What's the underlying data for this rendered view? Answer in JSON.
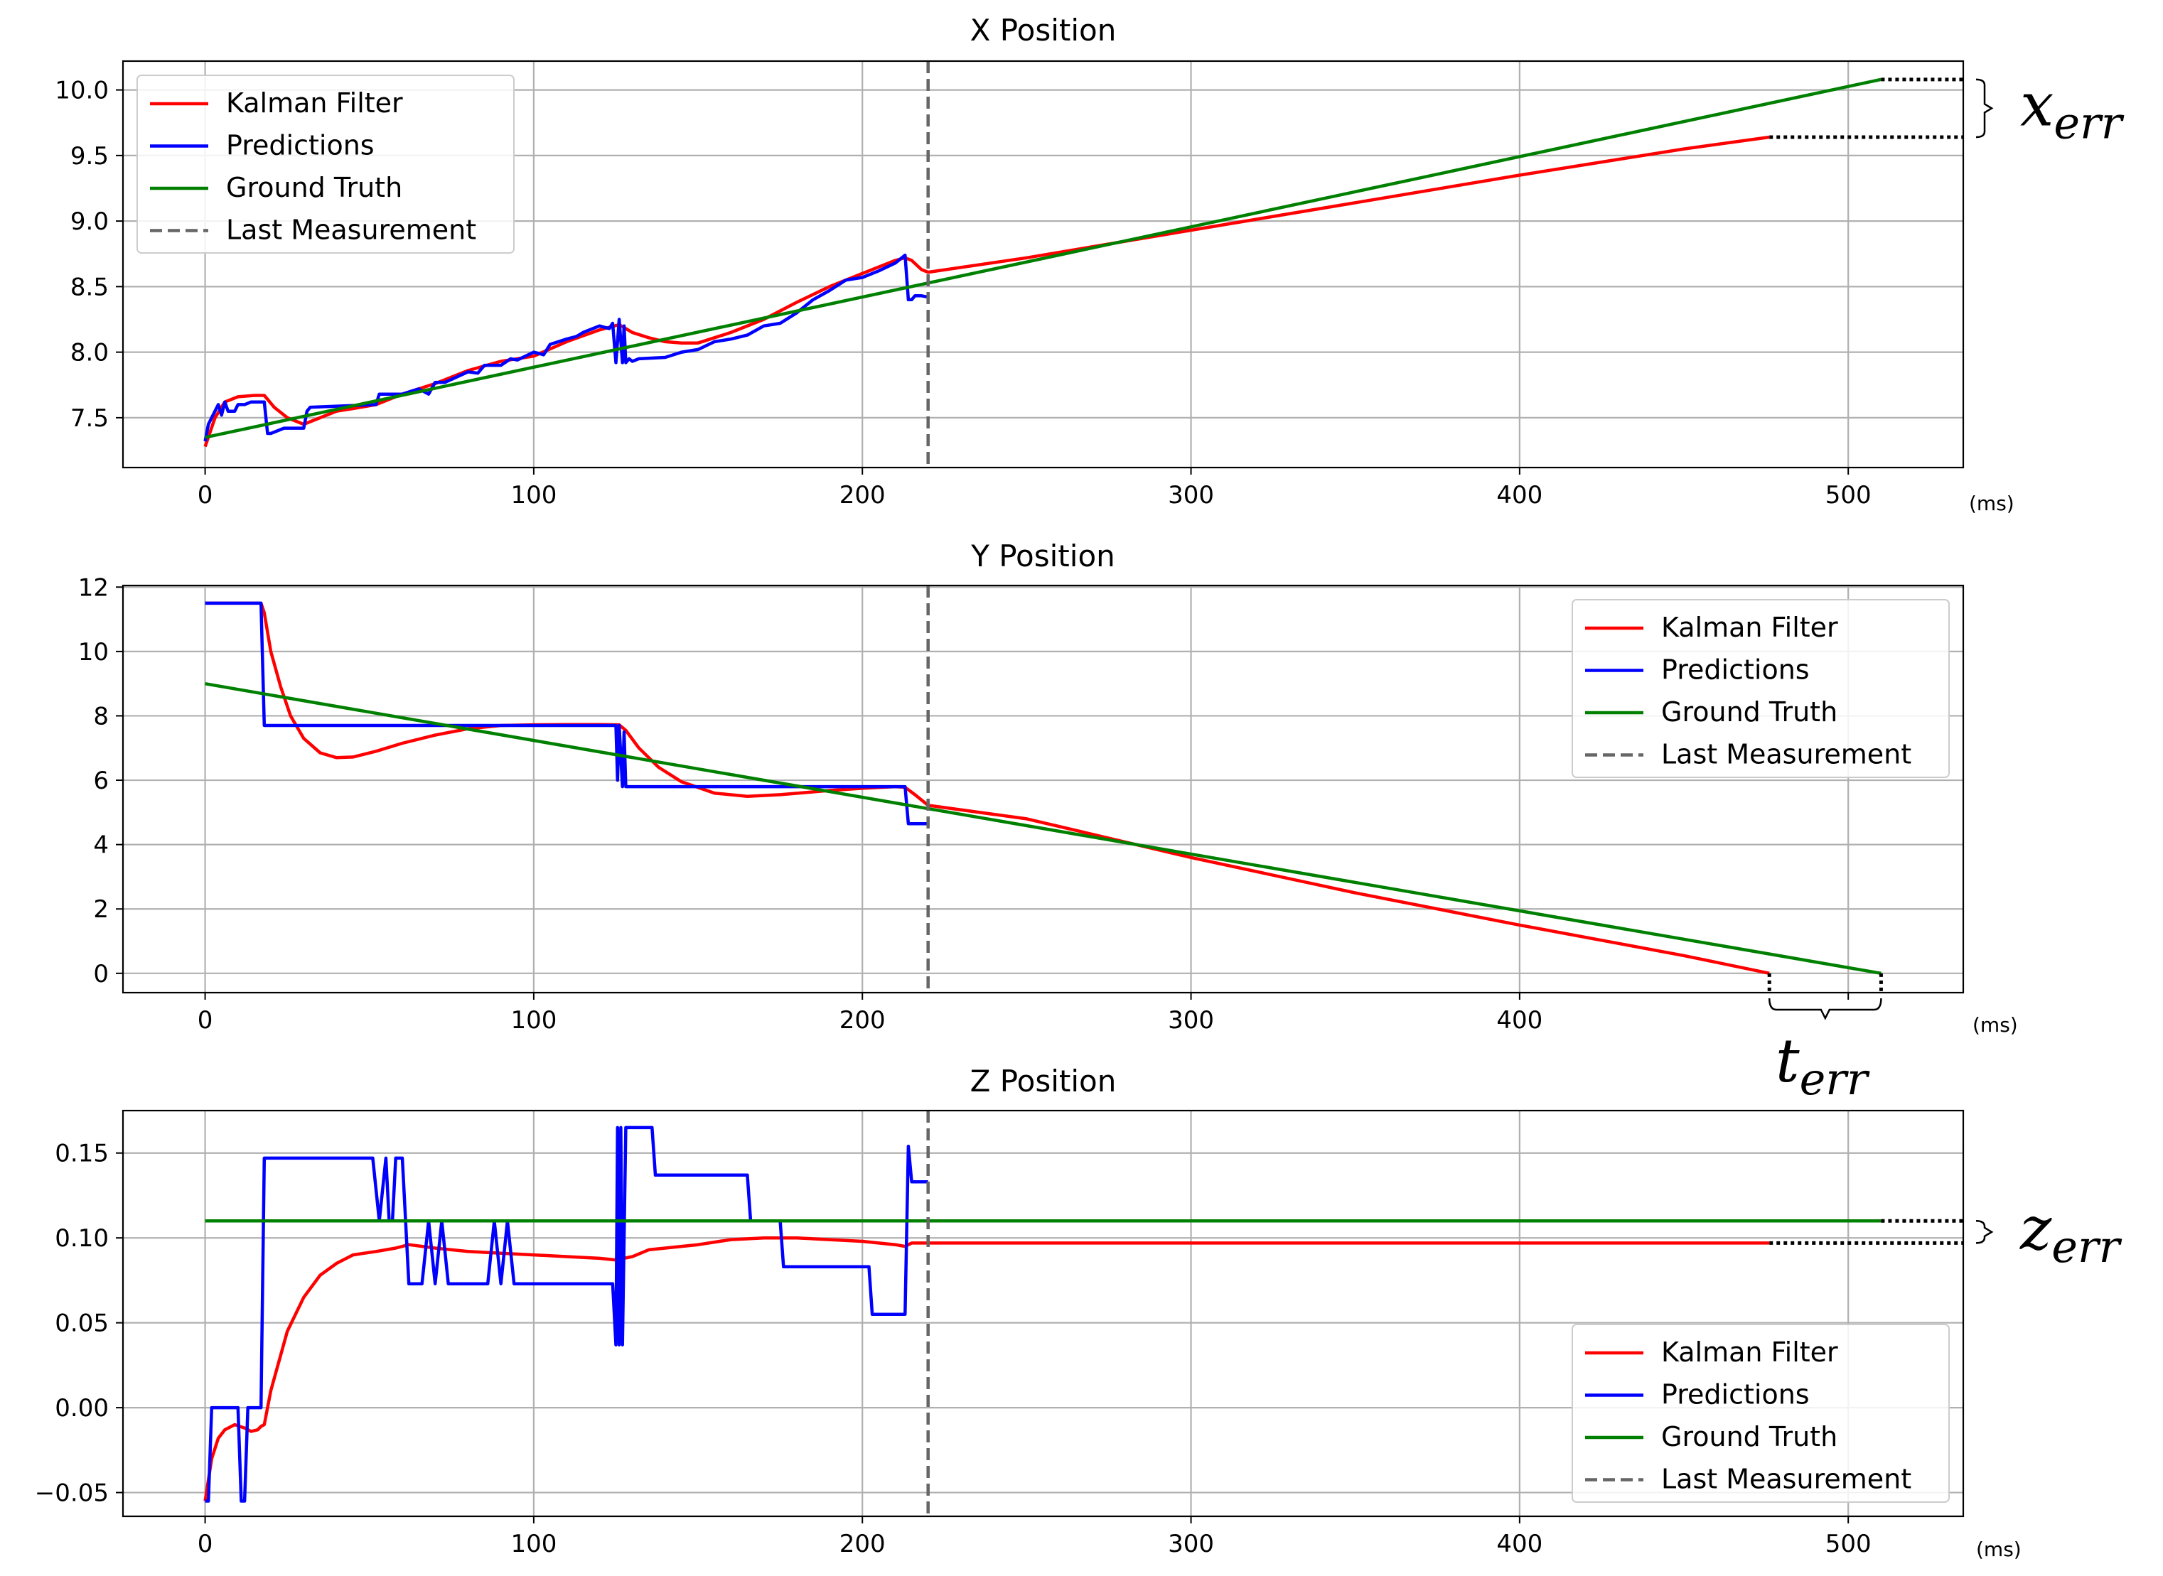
{
  "chart_data": [
    {
      "type": "line",
      "title": "X Position",
      "x_unit_label": "(ms)",
      "xlim": [
        -25,
        535
      ],
      "ylim": [
        7.12,
        10.22
      ],
      "xticks": [
        0,
        100,
        200,
        300,
        400,
        500
      ],
      "xtick_labels": [
        "0",
        "100",
        "200",
        "300",
        "400",
        "500"
      ],
      "yticks": [
        7.5,
        8.0,
        8.5,
        9.0,
        9.5,
        10.0
      ],
      "ytick_labels": [
        "7.5",
        "8.0",
        "8.5",
        "9.0",
        "9.5",
        "10.0"
      ],
      "grid": true,
      "legend_position": "upper left",
      "last_measurement_x": 220,
      "annotation": {
        "label": "x",
        "sub": "err",
        "y_from": 10.08,
        "y_to": 9.64
      },
      "series": [
        {
          "name": "Kalman Filter",
          "color": "#ff0000",
          "x": [
            0,
            3,
            6,
            10,
            15,
            18,
            21,
            25,
            30,
            35,
            40,
            45,
            52,
            60,
            70,
            80,
            90,
            100,
            110,
            120,
            126,
            130,
            135,
            140,
            145,
            150,
            160,
            170,
            180,
            190,
            200,
            205,
            210,
            213,
            215,
            218,
            220,
            250,
            300,
            350,
            400,
            450,
            476
          ],
          "y": [
            7.28,
            7.5,
            7.62,
            7.66,
            7.67,
            7.67,
            7.58,
            7.5,
            7.45,
            7.5,
            7.55,
            7.57,
            7.6,
            7.68,
            7.76,
            7.86,
            7.93,
            7.97,
            8.08,
            8.17,
            8.21,
            8.15,
            8.11,
            8.08,
            8.07,
            8.07,
            8.15,
            8.25,
            8.38,
            8.5,
            8.6,
            8.65,
            8.7,
            8.72,
            8.7,
            8.63,
            8.61,
            8.72,
            8.93,
            9.14,
            9.35,
            9.55,
            9.64
          ]
        },
        {
          "name": "Predictions",
          "color": "#0000ff",
          "x": [
            0,
            1,
            2,
            4,
            5,
            6,
            7,
            9,
            10,
            12,
            14,
            16,
            17,
            18,
            19,
            20,
            24,
            28,
            30,
            31,
            32,
            52,
            53,
            60,
            65,
            68,
            70,
            73,
            80,
            83,
            85,
            90,
            93,
            95,
            100,
            103,
            105,
            110,
            113,
            115,
            120,
            123,
            124,
            125,
            126,
            127,
            127.5,
            128,
            129,
            130,
            132,
            140,
            145,
            150,
            155,
            160,
            165,
            170,
            175,
            180,
            185,
            190,
            195,
            200,
            205,
            210,
            213,
            214,
            215,
            216,
            218,
            220
          ],
          "y": [
            7.32,
            7.45,
            7.5,
            7.6,
            7.52,
            7.62,
            7.55,
            7.55,
            7.6,
            7.6,
            7.62,
            7.62,
            7.62,
            7.62,
            7.38,
            7.38,
            7.42,
            7.42,
            7.42,
            7.55,
            7.58,
            7.6,
            7.68,
            7.68,
            7.72,
            7.68,
            7.77,
            7.77,
            7.85,
            7.84,
            7.9,
            7.9,
            7.95,
            7.94,
            8.0,
            7.98,
            8.06,
            8.1,
            8.12,
            8.15,
            8.2,
            8.18,
            8.22,
            7.92,
            8.25,
            7.92,
            8.2,
            7.92,
            7.95,
            7.93,
            7.95,
            7.96,
            8.0,
            8.02,
            8.08,
            8.1,
            8.13,
            8.2,
            8.22,
            8.3,
            8.4,
            8.47,
            8.55,
            8.57,
            8.62,
            8.68,
            8.74,
            8.4,
            8.4,
            8.43,
            8.43,
            8.42
          ]
        },
        {
          "name": "Ground Truth",
          "color": "#008000",
          "x": [
            0,
            510
          ],
          "y": [
            7.35,
            10.08
          ]
        },
        {
          "name": "Last Measurement",
          "color": "#666666",
          "dashed": true
        }
      ]
    },
    {
      "type": "line",
      "title": "Y Position",
      "x_unit_label": "(ms)",
      "xlim": [
        -25,
        535
      ],
      "ylim": [
        -0.6,
        12.05
      ],
      "xticks": [
        0,
        100,
        200,
        300,
        400,
        500
      ],
      "xtick_labels": [
        "0",
        "100",
        "200",
        "300",
        "400",
        ""
      ],
      "yticks": [
        0,
        2,
        4,
        6,
        8,
        10,
        12
      ],
      "ytick_labels": [
        "0",
        "2",
        "4",
        "6",
        "8",
        "10",
        "12"
      ],
      "grid": true,
      "legend_position": "upper right",
      "last_measurement_x": 220,
      "annotation": {
        "label": "t",
        "sub": "err",
        "x_from": 476,
        "x_to": 510
      },
      "series": [
        {
          "name": "Kalman Filter",
          "color": "#ff0000",
          "x": [
            0,
            17,
            18,
            20,
            23,
            26,
            30,
            35,
            40,
            45,
            52,
            60,
            70,
            80,
            90,
            100,
            110,
            120,
            126,
            128,
            132,
            138,
            145,
            155,
            165,
            175,
            190,
            200,
            210,
            213,
            216,
            220,
            250,
            300,
            350,
            400,
            450,
            476
          ],
          "y": [
            11.5,
            11.5,
            11.2,
            10.0,
            8.9,
            8.0,
            7.3,
            6.85,
            6.7,
            6.72,
            6.9,
            7.15,
            7.4,
            7.6,
            7.7,
            7.72,
            7.73,
            7.73,
            7.72,
            7.55,
            7.0,
            6.4,
            5.95,
            5.6,
            5.5,
            5.55,
            5.68,
            5.75,
            5.8,
            5.78,
            5.55,
            5.22,
            4.8,
            3.6,
            2.5,
            1.5,
            0.55,
            0.0
          ]
        },
        {
          "name": "Predictions",
          "color": "#0000ff",
          "x": [
            0,
            17,
            18,
            125,
            125.5,
            126,
            127,
            127.5,
            128,
            213,
            214,
            215,
            220
          ],
          "y": [
            11.5,
            11.5,
            7.7,
            7.7,
            6.0,
            7.7,
            5.8,
            7.5,
            5.8,
            5.8,
            4.65,
            4.65,
            4.65
          ]
        },
        {
          "name": "Ground Truth",
          "color": "#008000",
          "x": [
            0,
            510
          ],
          "y": [
            9.0,
            0.0
          ]
        },
        {
          "name": "Last Measurement",
          "color": "#666666",
          "dashed": true
        }
      ]
    },
    {
      "type": "line",
      "title": "Z Position",
      "x_unit_label": "(ms)",
      "xlim": [
        -25,
        535
      ],
      "ylim": [
        -0.064,
        0.175
      ],
      "xticks": [
        0,
        100,
        200,
        300,
        400,
        500
      ],
      "xtick_labels": [
        "0",
        "100",
        "200",
        "300",
        "400",
        "500"
      ],
      "yticks": [
        -0.05,
        0.0,
        0.05,
        0.1,
        0.15
      ],
      "ytick_labels": [
        "−0.05",
        "0.00",
        "0.05",
        "0.10",
        "0.15"
      ],
      "grid": true,
      "legend_position": "lower right",
      "last_measurement_x": 220,
      "annotation": {
        "label": "z",
        "sub": "err",
        "y_from": 0.11,
        "y_to": 0.097
      },
      "series": [
        {
          "name": "Kalman Filter",
          "color": "#ff0000",
          "x": [
            0,
            2,
            4,
            6,
            9,
            12,
            14,
            16,
            17,
            18,
            20,
            25,
            30,
            35,
            40,
            45,
            52,
            58,
            62,
            70,
            80,
            90,
            100,
            110,
            120,
            125,
            130,
            135,
            140,
            150,
            160,
            170,
            180,
            190,
            200,
            205,
            210,
            213,
            215,
            220,
            300,
            400,
            476
          ],
          "y": [
            -0.055,
            -0.03,
            -0.018,
            -0.013,
            -0.01,
            -0.012,
            -0.014,
            -0.013,
            -0.011,
            -0.01,
            0.01,
            0.045,
            0.065,
            0.078,
            0.085,
            0.09,
            0.092,
            0.094,
            0.096,
            0.094,
            0.092,
            0.091,
            0.09,
            0.089,
            0.088,
            0.087,
            0.089,
            0.093,
            0.094,
            0.096,
            0.099,
            0.1,
            0.1,
            0.099,
            0.098,
            0.097,
            0.096,
            0.095,
            0.097,
            0.097,
            0.097,
            0.097,
            0.097
          ]
        },
        {
          "name": "Predictions",
          "color": "#0000ff",
          "x": [
            0,
            1,
            2,
            10,
            11,
            12,
            13,
            14,
            15,
            16,
            17,
            18,
            19,
            51,
            53,
            55,
            56,
            57,
            58,
            59,
            60,
            62,
            63,
            66,
            68,
            70,
            72,
            74,
            76,
            86,
            88,
            90,
            92,
            94,
            95,
            97,
            110,
            124,
            125,
            125.5,
            126,
            126.5,
            127,
            128,
            136,
            137,
            165,
            166,
            175,
            176,
            202,
            203,
            213,
            214,
            215,
            216,
            220
          ],
          "y": [
            -0.055,
            -0.055,
            0.0,
            0.0,
            -0.055,
            -0.055,
            0.0,
            0.0,
            0.0,
            0.0,
            0.0,
            0.147,
            0.147,
            0.147,
            0.11,
            0.147,
            0.11,
            0.11,
            0.147,
            0.147,
            0.147,
            0.073,
            0.073,
            0.073,
            0.11,
            0.073,
            0.11,
            0.073,
            0.073,
            0.073,
            0.11,
            0.073,
            0.11,
            0.073,
            0.073,
            0.073,
            0.073,
            0.073,
            0.037,
            0.165,
            0.037,
            0.165,
            0.037,
            0.165,
            0.165,
            0.137,
            0.137,
            0.11,
            0.11,
            0.083,
            0.083,
            0.055,
            0.055,
            0.154,
            0.133,
            0.133,
            0.133
          ]
        },
        {
          "name": "Ground Truth",
          "color": "#008000",
          "x": [
            0,
            510
          ],
          "y": [
            0.11,
            0.11
          ]
        },
        {
          "name": "Last Measurement",
          "color": "#666666",
          "dashed": true
        }
      ]
    }
  ]
}
